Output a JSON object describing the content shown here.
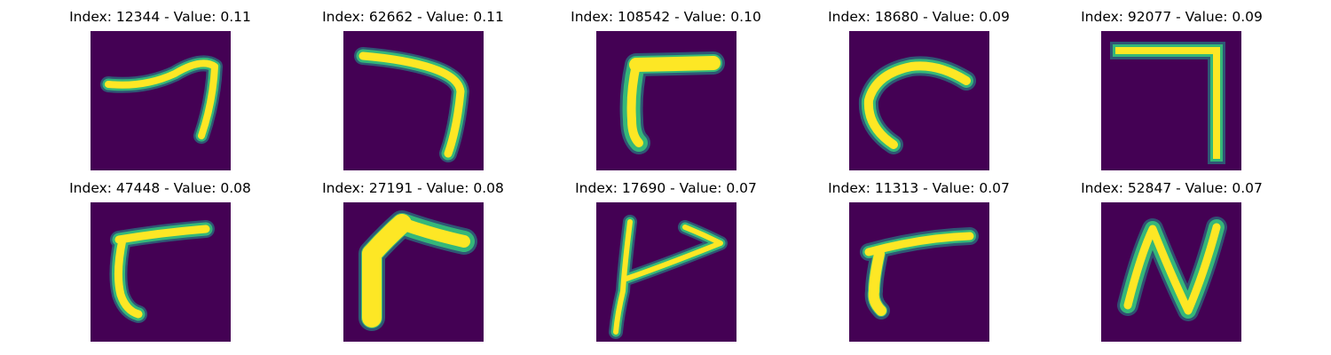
{
  "colors": {
    "background": "#440154",
    "stroke_core": "#fde725",
    "stroke_edge": "#35b779",
    "stroke_halo": "#21918c"
  },
  "panels": [
    {
      "title": "Index: 12344 - Value: 0.11",
      "glyph": "hook-seven"
    },
    {
      "title": "Index: 62662 - Value: 0.11",
      "glyph": "long-seven"
    },
    {
      "title": "Index: 108542 - Value: 0.10",
      "glyph": "bold-seven"
    },
    {
      "title": "Index: 18680 - Value: 0.09",
      "glyph": "curved-c"
    },
    {
      "title": "Index: 92077 - Value: 0.09",
      "glyph": "right-angle"
    },
    {
      "title": "Index: 47448 - Value: 0.08",
      "glyph": "gamma"
    },
    {
      "title": "Index: 27191 - Value: 0.08",
      "glyph": "thick-gamma"
    },
    {
      "title": "Index: 17690 - Value: 0.07",
      "glyph": "arrow"
    },
    {
      "title": "Index: 11313 - Value: 0.07",
      "glyph": "slanted-gamma"
    },
    {
      "title": "Index: 52847 - Value: 0.07",
      "glyph": "n-shape"
    }
  ]
}
